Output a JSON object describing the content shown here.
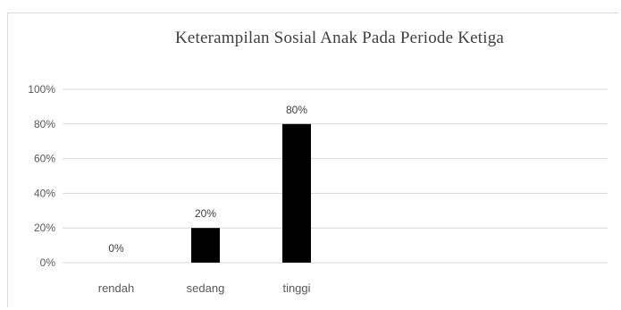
{
  "chart_data": {
    "type": "bar",
    "title": "Keterampilan  Sosial Anak Pada Periode  Ketiga",
    "xlabel": "",
    "ylabel": "",
    "categories": [
      "rendah",
      "sedang",
      "tinggi"
    ],
    "values": [
      0,
      20,
      80
    ],
    "data_labels": [
      "0%",
      "20%",
      "80%"
    ],
    "y_ticks": [
      "0%",
      "20%",
      "40%",
      "60%",
      "80%",
      "100%"
    ],
    "ylim": [
      0,
      100
    ],
    "grid": true,
    "legend": "none",
    "bar_color": "#000000",
    "grid_color": "#d9d9d9"
  }
}
